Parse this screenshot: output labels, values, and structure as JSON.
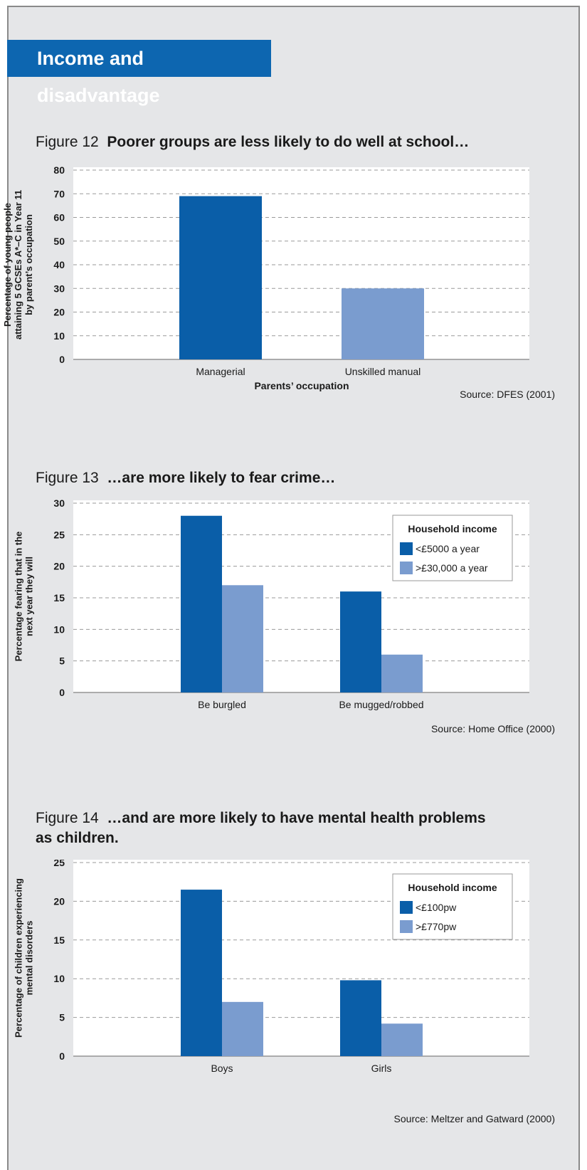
{
  "banner_title": "Income and disadvantage",
  "colors": {
    "banner": "#0d66b0",
    "series_dark": "#0a5ea8",
    "series_light": "#7a9ccf",
    "panel": "#e5e6e8"
  },
  "figures": [
    {
      "number": "Figure 12",
      "caption": "Poorer groups are less likely to do well at school…",
      "source": "Source: DFES (2001)"
    },
    {
      "number": "Figure 13",
      "caption": "…are more likely to fear crime…",
      "source": "Source: Home Office (2000)"
    },
    {
      "number": "Figure 14",
      "caption": "…and are more likely to have mental health problems",
      "caption_line2": "as children.",
      "source": "Source: Meltzer and Gatward (2000)"
    }
  ],
  "chart_data": [
    {
      "type": "bar",
      "title": "Poorer groups are less likely to do well at school…",
      "xlabel": "Parents’ occupation",
      "ylabel": [
        "Percentage of young people",
        "attaining 5 GCSEs A*–C in Year 11",
        "by parent’s occupation"
      ],
      "ylim": [
        0,
        80
      ],
      "yticks": [
        0,
        10,
        20,
        30,
        40,
        50,
        60,
        70,
        80
      ],
      "grid": true,
      "categories": [
        "Managerial",
        "Unskilled manual"
      ],
      "values": [
        69,
        30
      ],
      "bar_colors": [
        "#0a5ea8",
        "#7a9ccf"
      ]
    },
    {
      "type": "bar",
      "title": "…are more likely to fear crime…",
      "xlabel": "",
      "ylabel": [
        "Percentage fearing that in the",
        "next year they will"
      ],
      "ylim": [
        0,
        30
      ],
      "yticks": [
        0,
        5,
        10,
        15,
        20,
        25,
        30
      ],
      "grid": true,
      "categories": [
        "Be burgled",
        "Be mugged/robbed"
      ],
      "legend_title": "Household income",
      "legend_placement": "top-right",
      "series": [
        {
          "name": "<£5000 a year",
          "values": [
            28,
            16
          ],
          "color": "#0a5ea8"
        },
        {
          "name": ">£30,000 a year",
          "values": [
            17,
            6
          ],
          "color": "#7a9ccf"
        }
      ]
    },
    {
      "type": "bar",
      "title": "…and are more likely to have mental health problems as children.",
      "xlabel": "",
      "ylabel": [
        "Percentage of children experiencing",
        "mental disorders"
      ],
      "ylim": [
        0,
        25
      ],
      "yticks": [
        0,
        5,
        10,
        15,
        20,
        25
      ],
      "grid": true,
      "categories": [
        "Boys",
        "Girls"
      ],
      "legend_title": "Household income",
      "legend_placement": "top-right",
      "series": [
        {
          "name": "<£100pw",
          "values": [
            21.5,
            9.8
          ],
          "color": "#0a5ea8"
        },
        {
          "name": ">£770pw",
          "values": [
            7,
            4.2
          ],
          "color": "#7a9ccf"
        }
      ]
    }
  ]
}
